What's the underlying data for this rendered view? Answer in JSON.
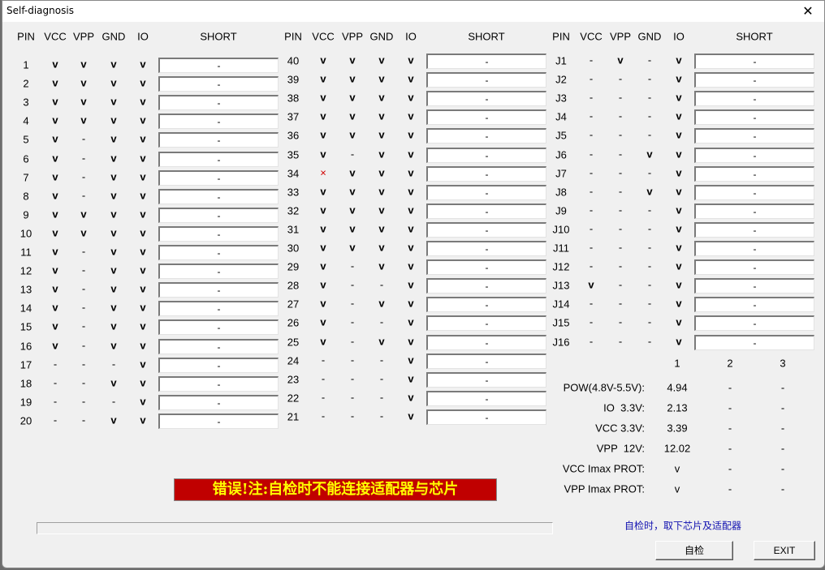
{
  "window": {
    "title": "Self-diagnosis",
    "close_icon": "close-icon"
  },
  "headers": {
    "pin": "PIN",
    "vcc": "VCC",
    "vpp": "VPP",
    "gnd": "GND",
    "io": "IO",
    "short": "SHORT"
  },
  "groups": [
    {
      "rows": [
        [
          "1",
          "v",
          "v",
          "v",
          "v",
          "-"
        ],
        [
          "2",
          "v",
          "v",
          "v",
          "v",
          "-"
        ],
        [
          "3",
          "v",
          "v",
          "v",
          "v",
          "-"
        ],
        [
          "4",
          "v",
          "v",
          "v",
          "v",
          "-"
        ],
        [
          "5",
          "v",
          "-",
          "v",
          "v",
          "-"
        ],
        [
          "6",
          "v",
          "-",
          "v",
          "v",
          "-"
        ],
        [
          "7",
          "v",
          "-",
          "v",
          "v",
          "-"
        ],
        [
          "8",
          "v",
          "-",
          "v",
          "v",
          "-"
        ],
        [
          "9",
          "v",
          "v",
          "v",
          "v",
          "-"
        ],
        [
          "10",
          "v",
          "v",
          "v",
          "v",
          "-"
        ],
        [
          "11",
          "v",
          "-",
          "v",
          "v",
          "-"
        ],
        [
          "12",
          "v",
          "-",
          "v",
          "v",
          "-"
        ],
        [
          "13",
          "v",
          "-",
          "v",
          "v",
          "-"
        ],
        [
          "14",
          "v",
          "-",
          "v",
          "v",
          "-"
        ],
        [
          "15",
          "v",
          "-",
          "v",
          "v",
          "-"
        ],
        [
          "16",
          "v",
          "-",
          "v",
          "v",
          "-"
        ],
        [
          "17",
          "-",
          "-",
          "-",
          "v",
          "-"
        ],
        [
          "18",
          "-",
          "-",
          "v",
          "v",
          "-"
        ],
        [
          "19",
          "-",
          "-",
          "-",
          "v",
          "-"
        ],
        [
          "20",
          "-",
          "-",
          "v",
          "v",
          "-"
        ]
      ]
    },
    {
      "rows": [
        [
          "40",
          "v",
          "v",
          "v",
          "v",
          "-"
        ],
        [
          "39",
          "v",
          "v",
          "v",
          "v",
          "-"
        ],
        [
          "38",
          "v",
          "v",
          "v",
          "v",
          "-"
        ],
        [
          "37",
          "v",
          "v",
          "v",
          "v",
          "-"
        ],
        [
          "36",
          "v",
          "v",
          "v",
          "v",
          "-"
        ],
        [
          "35",
          "v",
          "-",
          "v",
          "v",
          "-"
        ],
        [
          "34",
          "x",
          "v",
          "v",
          "v",
          "-"
        ],
        [
          "33",
          "v",
          "v",
          "v",
          "v",
          "-"
        ],
        [
          "32",
          "v",
          "v",
          "v",
          "v",
          "-"
        ],
        [
          "31",
          "v",
          "v",
          "v",
          "v",
          "-"
        ],
        [
          "30",
          "v",
          "v",
          "v",
          "v",
          "-"
        ],
        [
          "29",
          "v",
          "-",
          "v",
          "v",
          "-"
        ],
        [
          "28",
          "v",
          "-",
          "-",
          "v",
          "-"
        ],
        [
          "27",
          "v",
          "-",
          "v",
          "v",
          "-"
        ],
        [
          "26",
          "v",
          "-",
          "-",
          "v",
          "-"
        ],
        [
          "25",
          "v",
          "-",
          "v",
          "v",
          "-"
        ],
        [
          "24",
          "-",
          "-",
          "-",
          "v",
          "-"
        ],
        [
          "23",
          "-",
          "-",
          "-",
          "v",
          "-"
        ],
        [
          "22",
          "-",
          "-",
          "-",
          "v",
          "-"
        ],
        [
          "21",
          "-",
          "-",
          "-",
          "v",
          "-"
        ]
      ]
    },
    {
      "rows": [
        [
          "J1",
          "-",
          "v",
          "-",
          "v",
          "-"
        ],
        [
          "J2",
          "-",
          "-",
          "-",
          "v",
          "-"
        ],
        [
          "J3",
          "-",
          "-",
          "-",
          "v",
          "-"
        ],
        [
          "J4",
          "-",
          "-",
          "-",
          "v",
          "-"
        ],
        [
          "J5",
          "-",
          "-",
          "-",
          "v",
          "-"
        ],
        [
          "J6",
          "-",
          "-",
          "v",
          "v",
          "-"
        ],
        [
          "J7",
          "-",
          "-",
          "-",
          "v",
          "-"
        ],
        [
          "J8",
          "-",
          "-",
          "v",
          "v",
          "-"
        ],
        [
          "J9",
          "-",
          "-",
          "-",
          "v",
          "-"
        ],
        [
          "J10",
          "-",
          "-",
          "-",
          "v",
          "-"
        ],
        [
          "J11",
          "-",
          "-",
          "-",
          "v",
          "-"
        ],
        [
          "J12",
          "-",
          "-",
          "-",
          "v",
          "-"
        ],
        [
          "J13",
          "v",
          "-",
          "-",
          "v",
          "-"
        ],
        [
          "J14",
          "-",
          "-",
          "-",
          "v",
          "-"
        ],
        [
          "J15",
          "-",
          "-",
          "-",
          "v",
          "-"
        ],
        [
          "J16",
          "-",
          "-",
          "-",
          "v",
          "-"
        ]
      ]
    }
  ],
  "voltage": {
    "columns": [
      "1",
      "2",
      "3"
    ],
    "rows": [
      {
        "label": "POW(4.8V-5.5V):",
        "values": [
          "4.94",
          "-",
          "-"
        ]
      },
      {
        "label": "IO  3.3V:",
        "values": [
          "2.13",
          "-",
          "-"
        ]
      },
      {
        "label": "VCC 3.3V:",
        "values": [
          "3.39",
          "-",
          "-"
        ]
      },
      {
        "label": "VPP  12V:",
        "values": [
          "12.02",
          "-",
          "-"
        ]
      },
      {
        "label": "VCC Imax PROT:",
        "values": [
          "v",
          "-",
          "-"
        ]
      },
      {
        "label": "VPP Imax PROT:",
        "values": [
          "v",
          "-",
          "-"
        ]
      }
    ]
  },
  "banner": {
    "text": "错误!注:自检时不能连接适配器与芯片",
    "bg": "#c00000",
    "fg": "#ffff00"
  },
  "progress": {
    "value": 0
  },
  "hint": "自检时，取下芯片及适配器",
  "buttons": {
    "selftest": "自检",
    "exit": "EXIT"
  }
}
